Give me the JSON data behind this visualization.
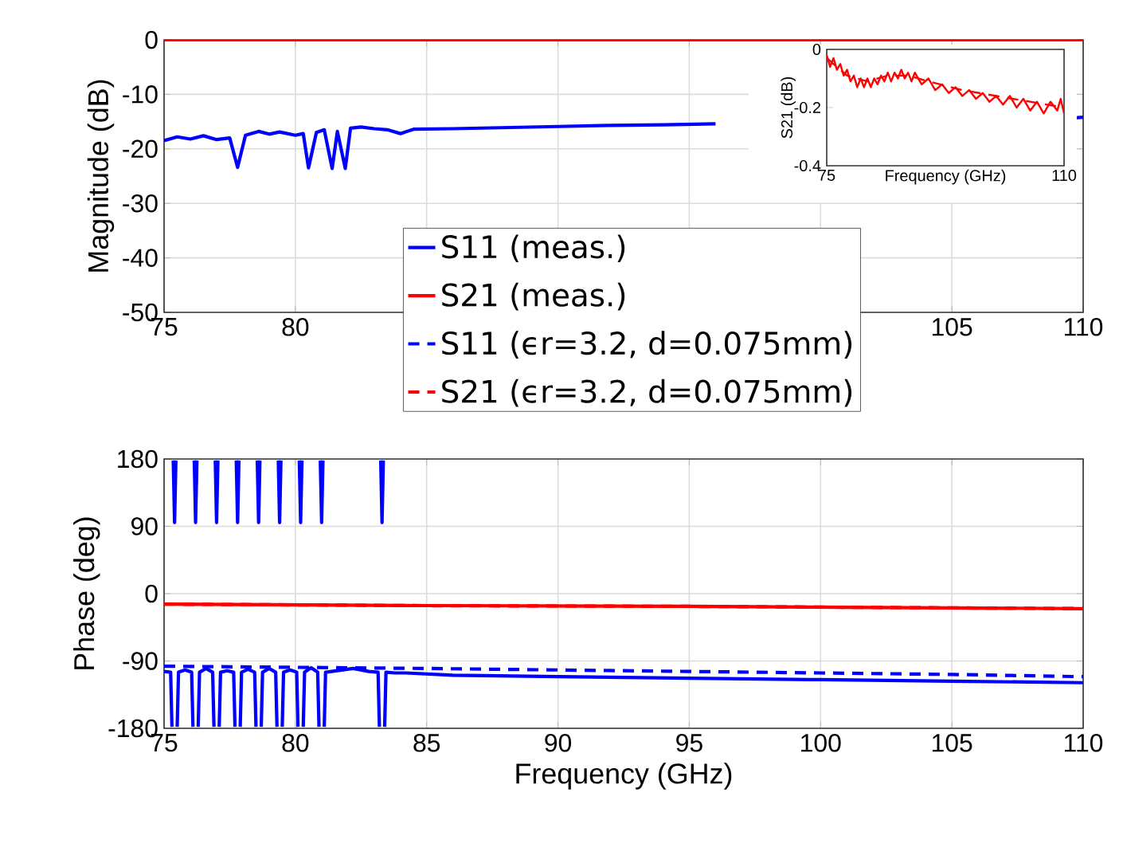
{
  "chart_data": [
    {
      "type": "line",
      "ylabel": "Magnitude (dB)",
      "xlim": [
        75,
        110
      ],
      "xticks": [
        75,
        80,
        {
          "value": 85,
          "label": null
        },
        {
          "value": 90,
          "label": null
        },
        {
          "value": 95,
          "label": null
        },
        {
          "value": 100,
          "label": null
        },
        105,
        110
      ],
      "ylim": [
        -50,
        0
      ],
      "yticks": [
        -50,
        -40,
        -30,
        -20,
        -10,
        0
      ],
      "grid": true,
      "marker": "none",
      "series": [
        {
          "color": "#0000ff",
          "line_style": "solid",
          "x": [
            75,
            75.5,
            76,
            76.5,
            77,
            77.5,
            77.8,
            78.1,
            78.6,
            79,
            79.4,
            80,
            80.3,
            80.5,
            80.8,
            81.1,
            81.4,
            81.6,
            81.9,
            82.1,
            82.5,
            83,
            83.5,
            84,
            84.5,
            86,
            88,
            90,
            92,
            94,
            96,
            97,
            109.7,
            110
          ],
          "values": [
            -18.5,
            -17.8,
            -18.2,
            -17.6,
            -18.3,
            -18,
            -23.4,
            -17.5,
            -16.8,
            -17.3,
            -16.9,
            -17.5,
            -17.2,
            -23.5,
            -17,
            -16.5,
            -23.6,
            -16.8,
            -23.6,
            -16.2,
            -16,
            -16.3,
            -16.5,
            -17.2,
            -16.4,
            -16.3,
            -16.1,
            -15.9,
            -15.7,
            -15.6,
            -15.4,
            null,
            -14.3,
            -14.2
          ]
        },
        {
          "color": "#ff0000",
          "line_style": "solid",
          "x": [
            75,
            110
          ],
          "values": [
            0,
            0
          ]
        }
      ]
    },
    {
      "type": "line",
      "xlabel": "Frequency (GHz)",
      "ylabel": "S21 (dB)",
      "xlim": [
        75,
        110
      ],
      "xticks": [
        75,
        110
      ],
      "ylim": [
        -0.4,
        0
      ],
      "yticks": [
        -0.4,
        -0.2,
        0
      ],
      "marker": "none",
      "series": [
        {
          "color": "#ff0000",
          "line_style": "solid",
          "x": [
            75,
            75.5,
            76,
            76.5,
            77,
            77.5,
            78,
            78.5,
            79,
            79.5,
            80,
            80.5,
            81,
            81.5,
            82,
            82.5,
            83,
            83.5,
            84,
            84.5,
            85,
            85.5,
            86,
            86.5,
            87,
            87.5,
            88,
            89,
            90,
            91,
            92,
            93,
            94,
            95,
            96,
            97,
            98,
            99,
            100,
            101,
            102,
            103,
            104,
            105,
            106,
            107,
            108,
            109,
            109.5,
            110
          ],
          "values": [
            -0.02,
            -0.06,
            -0.03,
            -0.07,
            -0.05,
            -0.09,
            -0.07,
            -0.11,
            -0.09,
            -0.13,
            -0.1,
            -0.13,
            -0.1,
            -0.13,
            -0.1,
            -0.12,
            -0.09,
            -0.11,
            -0.08,
            -0.11,
            -0.08,
            -0.1,
            -0.07,
            -0.1,
            -0.08,
            -0.11,
            -0.08,
            -0.12,
            -0.1,
            -0.14,
            -0.12,
            -0.15,
            -0.13,
            -0.16,
            -0.14,
            -0.17,
            -0.15,
            -0.18,
            -0.16,
            -0.19,
            -0.16,
            -0.2,
            -0.17,
            -0.21,
            -0.18,
            -0.22,
            -0.18,
            -0.21,
            -0.17,
            -0.22
          ]
        },
        {
          "color": "#ff0000",
          "line_style": "dashed",
          "x": [
            75,
            78,
            81,
            84,
            87,
            90,
            95,
            100,
            105,
            110
          ],
          "values": [
            -0.03,
            -0.09,
            -0.11,
            -0.09,
            -0.09,
            -0.11,
            -0.14,
            -0.16,
            -0.18,
            -0.2
          ]
        }
      ]
    },
    {
      "type": "line",
      "xlabel": "Frequency (GHz)",
      "ylabel": "Phase (deg)",
      "xlim": [
        75,
        110
      ],
      "xticks": [
        75,
        80,
        85,
        90,
        95,
        100,
        105,
        110
      ],
      "ylim": [
        -180,
        180
      ],
      "yticks": [
        -180,
        -90,
        0,
        90,
        180
      ],
      "grid": true,
      "legend": "top",
      "marker": "none",
      "series": [
        {
          "name": "S11 (meas.)",
          "color": "#0000ff",
          "line_style": "solid",
          "x": [
            75,
            75.25,
            75.3,
            75.33,
            75.35,
            75.4,
            75.45,
            75.47,
            75.5,
            75.55,
            75.8,
            76.05,
            76.1,
            76.13,
            76.15,
            76.2,
            76.25,
            76.27,
            76.3,
            76.35,
            76.6,
            76.85,
            76.9,
            76.93,
            76.95,
            77,
            77.05,
            77.07,
            77.1,
            77.15,
            77.4,
            77.65,
            77.7,
            77.73,
            77.75,
            77.8,
            77.85,
            77.87,
            77.9,
            77.95,
            78.2,
            78.45,
            78.5,
            78.53,
            78.55,
            78.6,
            78.65,
            78.67,
            78.7,
            78.75,
            79,
            79.25,
            79.3,
            79.33,
            79.35,
            79.4,
            79.45,
            79.47,
            79.5,
            79.55,
            79.8,
            80.05,
            80.1,
            80.13,
            80.15,
            80.2,
            80.25,
            80.27,
            80.3,
            80.35,
            80.6,
            80.85,
            80.9,
            80.93,
            80.95,
            81,
            81.05,
            81.07,
            81.1,
            81.15,
            81.6,
            82.2,
            82.8,
            83.15,
            83.2,
            83.23,
            83.25,
            83.3,
            83.35,
            83.37,
            83.4,
            83.45,
            83.8,
            84.2,
            86,
            90,
            95,
            100,
            105,
            110
          ],
          "values": [
            -104,
            -105,
            -178,
            null,
            178,
            95,
            178,
            null,
            -178,
            -105,
            -102,
            -105,
            -178,
            null,
            178,
            95,
            178,
            null,
            -178,
            -105,
            -100,
            -105,
            -178,
            null,
            178,
            95,
            178,
            null,
            -178,
            -105,
            -103,
            -105,
            -178,
            null,
            178,
            95,
            178,
            null,
            -178,
            -105,
            -101,
            -105,
            -178,
            null,
            178,
            95,
            178,
            null,
            -178,
            -105,
            -100,
            -105,
            -178,
            null,
            178,
            95,
            178,
            null,
            -178,
            -105,
            -102,
            -105,
            -178,
            null,
            178,
            95,
            178,
            null,
            -178,
            -105,
            -99,
            -105,
            -178,
            null,
            178,
            95,
            178,
            null,
            -178,
            -105,
            -103,
            -100,
            -104,
            -105,
            -178,
            null,
            178,
            95,
            178,
            null,
            -178,
            -105,
            -106,
            -106,
            -109,
            -111,
            -113,
            -115,
            -117,
            -119
          ]
        },
        {
          "name": "S21 (meas.)",
          "color": "#ff0000",
          "line_style": "solid",
          "x": [
            75,
            85,
            95,
            110
          ],
          "values": [
            -14,
            -16,
            -17,
            -20
          ]
        },
        {
          "name": "S11 (ϵr=3.2, d=0.075mm)",
          "color": "#0000ff",
          "line_style": "dashed",
          "x": [
            75,
            85,
            90,
            95,
            100,
            105,
            110
          ],
          "values": [
            -97,
            -100,
            -102,
            -104,
            -106,
            -108,
            -111
          ]
        },
        {
          "name": "S21 (ϵr=3.2, d=0.075mm)",
          "color": "#ff0000",
          "line_style": "dashed",
          "x": [
            75,
            85,
            95,
            110
          ],
          "values": [
            -14,
            -16,
            -17,
            -20
          ]
        }
      ]
    }
  ]
}
